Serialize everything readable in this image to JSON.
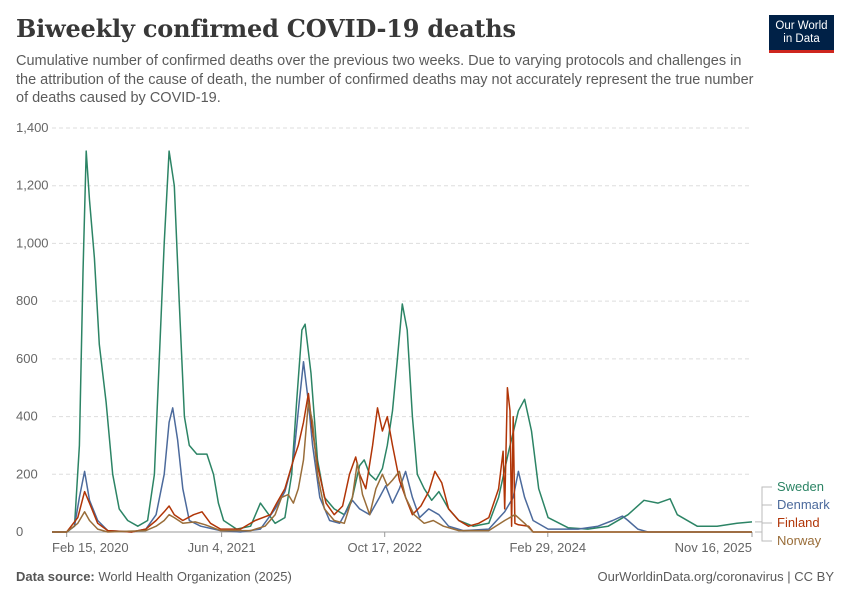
{
  "header": {
    "title": "Biweekly confirmed COVID-19 deaths",
    "subtitle": "Cumulative number of confirmed deaths over the previous two weeks. Due to varying protocols and challenges in the attribution of the cause of death, the number of confirmed deaths may not accurately represent the true number of deaths caused by COVID-19."
  },
  "logo": {
    "line1": "Our World",
    "line2": "in Data"
  },
  "footer": {
    "source_label": "Data source:",
    "source_text": "World Health Organization (2025)",
    "right_text": "OurWorldinData.org/coronavirus | CC BY"
  },
  "colors": {
    "Sweden": "#2c8465",
    "Denmark": "#4c6a9c",
    "Finland": "#b13507",
    "Norway": "#996d39",
    "grid": "#dddddd",
    "axis": "#999999"
  },
  "chart_data": {
    "type": "line",
    "x_type": "date",
    "x_ticks": [
      "Feb 15, 2020",
      "Jun 4, 2021",
      "Oct 17, 2022",
      "Feb 29, 2024",
      "Nov 16, 2025"
    ],
    "xlim": [
      "2020-01-01",
      "2025-11-16"
    ],
    "ylim": [
      0,
      1400
    ],
    "y_ticks": [
      0,
      200,
      400,
      600,
      800,
      1000,
      1200,
      1400
    ],
    "y_tick_labels": [
      "0",
      "200",
      "400",
      "600",
      "800",
      "1,000",
      "1,200",
      "1,400"
    ],
    "grid": true,
    "legend": "right-end",
    "series": [
      {
        "name": "Sweden",
        "points": [
          [
            "2020-01-01",
            0
          ],
          [
            "2020-02-15",
            0
          ],
          [
            "2020-03-10",
            20
          ],
          [
            "2020-03-25",
            300
          ],
          [
            "2020-04-05",
            900
          ],
          [
            "2020-04-15",
            1320
          ],
          [
            "2020-04-25",
            1150
          ],
          [
            "2020-05-10",
            950
          ],
          [
            "2020-05-25",
            650
          ],
          [
            "2020-06-15",
            450
          ],
          [
            "2020-07-05",
            200
          ],
          [
            "2020-07-25",
            80
          ],
          [
            "2020-08-20",
            40
          ],
          [
            "2020-09-20",
            20
          ],
          [
            "2020-10-20",
            40
          ],
          [
            "2020-11-10",
            200
          ],
          [
            "2020-11-25",
            600
          ],
          [
            "2020-12-10",
            1000
          ],
          [
            "2020-12-25",
            1320
          ],
          [
            "2021-01-10",
            1200
          ],
          [
            "2021-01-25",
            800
          ],
          [
            "2021-02-10",
            400
          ],
          [
            "2021-02-25",
            300
          ],
          [
            "2021-03-20",
            270
          ],
          [
            "2021-04-20",
            270
          ],
          [
            "2021-05-10",
            200
          ],
          [
            "2021-05-25",
            100
          ],
          [
            "2021-06-10",
            40
          ],
          [
            "2021-07-20",
            10
          ],
          [
            "2021-09-01",
            20
          ],
          [
            "2021-10-01",
            100
          ],
          [
            "2021-11-15",
            30
          ],
          [
            "2021-12-15",
            50
          ],
          [
            "2022-01-05",
            200
          ],
          [
            "2022-01-20",
            450
          ],
          [
            "2022-02-05",
            700
          ],
          [
            "2022-02-15",
            720
          ],
          [
            "2022-03-05",
            550
          ],
          [
            "2022-03-25",
            250
          ],
          [
            "2022-04-15",
            120
          ],
          [
            "2022-05-15",
            80
          ],
          [
            "2022-06-15",
            60
          ],
          [
            "2022-07-10",
            120
          ],
          [
            "2022-08-01",
            230
          ],
          [
            "2022-08-15",
            250
          ],
          [
            "2022-09-01",
            200
          ],
          [
            "2022-09-20",
            180
          ],
          [
            "2022-10-10",
            220
          ],
          [
            "2022-10-25",
            300
          ],
          [
            "2022-11-10",
            420
          ],
          [
            "2022-11-25",
            600
          ],
          [
            "2022-12-10",
            790
          ],
          [
            "2022-12-25",
            700
          ],
          [
            "2023-01-10",
            400
          ],
          [
            "2023-01-25",
            200
          ],
          [
            "2023-02-15",
            150
          ],
          [
            "2023-03-10",
            110
          ],
          [
            "2023-04-01",
            140
          ],
          [
            "2023-05-01",
            80
          ],
          [
            "2023-06-01",
            40
          ],
          [
            "2023-07-15",
            20
          ],
          [
            "2023-09-01",
            30
          ],
          [
            "2023-10-01",
            120
          ],
          [
            "2023-11-01",
            280
          ],
          [
            "2023-12-01",
            420
          ],
          [
            "2023-12-20",
            460
          ],
          [
            "2024-01-10",
            350
          ],
          [
            "2024-02-01",
            150
          ],
          [
            "2024-03-01",
            50
          ],
          [
            "2024-05-01",
            15
          ],
          [
            "2024-07-01",
            10
          ],
          [
            "2024-09-01",
            20
          ],
          [
            "2024-11-01",
            60
          ],
          [
            "2024-12-20",
            110
          ],
          [
            "2025-02-01",
            100
          ],
          [
            "2025-03-10",
            115
          ],
          [
            "2025-04-01",
            60
          ],
          [
            "2025-06-01",
            20
          ],
          [
            "2025-08-01",
            20
          ],
          [
            "2025-10-01",
            30
          ],
          [
            "2025-11-16",
            35
          ]
        ]
      },
      {
        "name": "Denmark",
        "points": [
          [
            "2020-01-01",
            0
          ],
          [
            "2020-02-15",
            0
          ],
          [
            "2020-03-10",
            20
          ],
          [
            "2020-03-25",
            120
          ],
          [
            "2020-04-10",
            210
          ],
          [
            "2020-04-25",
            110
          ],
          [
            "2020-05-20",
            40
          ],
          [
            "2020-06-20",
            5
          ],
          [
            "2020-09-01",
            0
          ],
          [
            "2020-10-15",
            10
          ],
          [
            "2020-11-15",
            60
          ],
          [
            "2020-12-10",
            200
          ],
          [
            "2020-12-25",
            380
          ],
          [
            "2021-01-05",
            430
          ],
          [
            "2021-01-20",
            320
          ],
          [
            "2021-02-05",
            150
          ],
          [
            "2021-02-25",
            40
          ],
          [
            "2021-04-01",
            20
          ],
          [
            "2021-06-01",
            5
          ],
          [
            "2021-08-01",
            0
          ],
          [
            "2021-10-01",
            10
          ],
          [
            "2021-11-15",
            80
          ],
          [
            "2021-12-15",
            140
          ],
          [
            "2022-01-10",
            250
          ],
          [
            "2022-01-25",
            420
          ],
          [
            "2022-02-10",
            590
          ],
          [
            "2022-02-25",
            450
          ],
          [
            "2022-03-10",
            300
          ],
          [
            "2022-04-01",
            120
          ],
          [
            "2022-05-01",
            40
          ],
          [
            "2022-06-01",
            30
          ],
          [
            "2022-07-10",
            110
          ],
          [
            "2022-08-01",
            80
          ],
          [
            "2022-09-01",
            60
          ],
          [
            "2022-10-01",
            120
          ],
          [
            "2022-10-20",
            160
          ],
          [
            "2022-11-10",
            100
          ],
          [
            "2022-12-01",
            150
          ],
          [
            "2022-12-20",
            210
          ],
          [
            "2023-01-10",
            120
          ],
          [
            "2023-02-01",
            50
          ],
          [
            "2023-03-01",
            80
          ],
          [
            "2023-04-01",
            60
          ],
          [
            "2023-05-01",
            20
          ],
          [
            "2023-06-15",
            5
          ],
          [
            "2023-09-01",
            10
          ],
          [
            "2023-10-20",
            70
          ],
          [
            "2023-11-15",
            120
          ],
          [
            "2023-12-01",
            210
          ],
          [
            "2023-12-20",
            120
          ],
          [
            "2024-01-15",
            40
          ],
          [
            "2024-03-01",
            10
          ],
          [
            "2024-06-01",
            10
          ],
          [
            "2024-08-01",
            20
          ],
          [
            "2024-09-15",
            40
          ],
          [
            "2024-10-15",
            55
          ],
          [
            "2024-11-01",
            40
          ],
          [
            "2024-12-01",
            10
          ],
          [
            "2025-01-01",
            0
          ],
          [
            "2025-11-16",
            0
          ]
        ]
      },
      {
        "name": "Finland",
        "points": [
          [
            "2020-01-01",
            0
          ],
          [
            "2020-02-15",
            0
          ],
          [
            "2020-03-20",
            50
          ],
          [
            "2020-04-10",
            140
          ],
          [
            "2020-04-25",
            100
          ],
          [
            "2020-05-20",
            30
          ],
          [
            "2020-06-20",
            5
          ],
          [
            "2020-09-01",
            0
          ],
          [
            "2020-10-15",
            10
          ],
          [
            "2020-11-15",
            40
          ],
          [
            "2020-12-10",
            70
          ],
          [
            "2020-12-25",
            90
          ],
          [
            "2021-01-10",
            60
          ],
          [
            "2021-02-05",
            40
          ],
          [
            "2021-03-10",
            60
          ],
          [
            "2021-04-05",
            70
          ],
          [
            "2021-05-01",
            30
          ],
          [
            "2021-06-01",
            10
          ],
          [
            "2021-08-01",
            10
          ],
          [
            "2021-09-15",
            40
          ],
          [
            "2021-11-01",
            60
          ],
          [
            "2021-11-20",
            100
          ],
          [
            "2021-12-15",
            150
          ],
          [
            "2022-01-10",
            250
          ],
          [
            "2022-01-25",
            300
          ],
          [
            "2022-02-10",
            380
          ],
          [
            "2022-02-25",
            480
          ],
          [
            "2022-03-10",
            350
          ],
          [
            "2022-03-25",
            230
          ],
          [
            "2022-04-20",
            100
          ],
          [
            "2022-05-15",
            60
          ],
          [
            "2022-06-10",
            90
          ],
          [
            "2022-07-01",
            200
          ],
          [
            "2022-07-20",
            260
          ],
          [
            "2022-08-01",
            200
          ],
          [
            "2022-08-20",
            150
          ],
          [
            "2022-09-10",
            300
          ],
          [
            "2022-09-25",
            430
          ],
          [
            "2022-10-10",
            350
          ],
          [
            "2022-10-25",
            400
          ],
          [
            "2022-11-10",
            300
          ],
          [
            "2022-12-01",
            180
          ],
          [
            "2022-12-20",
            120
          ],
          [
            "2023-01-10",
            60
          ],
          [
            "2023-02-05",
            90
          ],
          [
            "2023-03-01",
            140
          ],
          [
            "2023-03-20",
            210
          ],
          [
            "2023-04-10",
            170
          ],
          [
            "2023-05-01",
            80
          ],
          [
            "2023-06-01",
            40
          ],
          [
            "2023-07-01",
            20
          ],
          [
            "2023-08-01",
            30
          ],
          [
            "2023-09-01",
            50
          ],
          [
            "2023-10-01",
            150
          ],
          [
            "2023-10-15",
            280
          ],
          [
            "2023-10-20",
            80
          ],
          [
            "2023-10-28",
            500
          ],
          [
            "2023-11-05",
            420
          ],
          [
            "2023-11-10",
            20
          ],
          [
            "2023-11-15",
            400
          ],
          [
            "2023-11-20",
            30
          ],
          [
            "2023-12-01",
            25
          ],
          [
            "2024-01-01",
            20
          ],
          [
            "2024-01-15",
            0
          ],
          [
            "2025-11-16",
            0
          ]
        ]
      },
      {
        "name": "Norway",
        "points": [
          [
            "2020-01-01",
            0
          ],
          [
            "2020-02-15",
            0
          ],
          [
            "2020-03-20",
            30
          ],
          [
            "2020-04-10",
            70
          ],
          [
            "2020-04-25",
            40
          ],
          [
            "2020-05-20",
            10
          ],
          [
            "2020-06-20",
            0
          ],
          [
            "2020-10-15",
            5
          ],
          [
            "2020-11-15",
            20
          ],
          [
            "2020-12-10",
            40
          ],
          [
            "2020-12-25",
            60
          ],
          [
            "2021-01-10",
            50
          ],
          [
            "2021-02-05",
            30
          ],
          [
            "2021-03-15",
            35
          ],
          [
            "2021-04-15",
            25
          ],
          [
            "2021-06-01",
            5
          ],
          [
            "2021-09-01",
            5
          ],
          [
            "2021-10-15",
            20
          ],
          [
            "2021-11-15",
            60
          ],
          [
            "2021-12-05",
            120
          ],
          [
            "2021-12-25",
            130
          ],
          [
            "2022-01-10",
            100
          ],
          [
            "2022-01-25",
            150
          ],
          [
            "2022-02-10",
            250
          ],
          [
            "2022-02-25",
            450
          ],
          [
            "2022-03-10",
            380
          ],
          [
            "2022-03-25",
            200
          ],
          [
            "2022-04-15",
            80
          ],
          [
            "2022-05-15",
            40
          ],
          [
            "2022-06-15",
            30
          ],
          [
            "2022-07-10",
            120
          ],
          [
            "2022-07-25",
            240
          ],
          [
            "2022-08-10",
            130
          ],
          [
            "2022-09-01",
            60
          ],
          [
            "2022-09-20",
            150
          ],
          [
            "2022-10-10",
            200
          ],
          [
            "2022-10-25",
            160
          ],
          [
            "2022-11-10",
            180
          ],
          [
            "2022-12-01",
            210
          ],
          [
            "2022-12-20",
            120
          ],
          [
            "2023-01-15",
            60
          ],
          [
            "2023-02-15",
            30
          ],
          [
            "2023-03-15",
            40
          ],
          [
            "2023-04-15",
            20
          ],
          [
            "2023-06-01",
            5
          ],
          [
            "2023-09-01",
            5
          ],
          [
            "2023-10-20",
            40
          ],
          [
            "2023-11-20",
            60
          ],
          [
            "2023-12-20",
            30
          ],
          [
            "2024-01-15",
            0
          ],
          [
            "2025-11-16",
            0
          ]
        ]
      }
    ]
  }
}
